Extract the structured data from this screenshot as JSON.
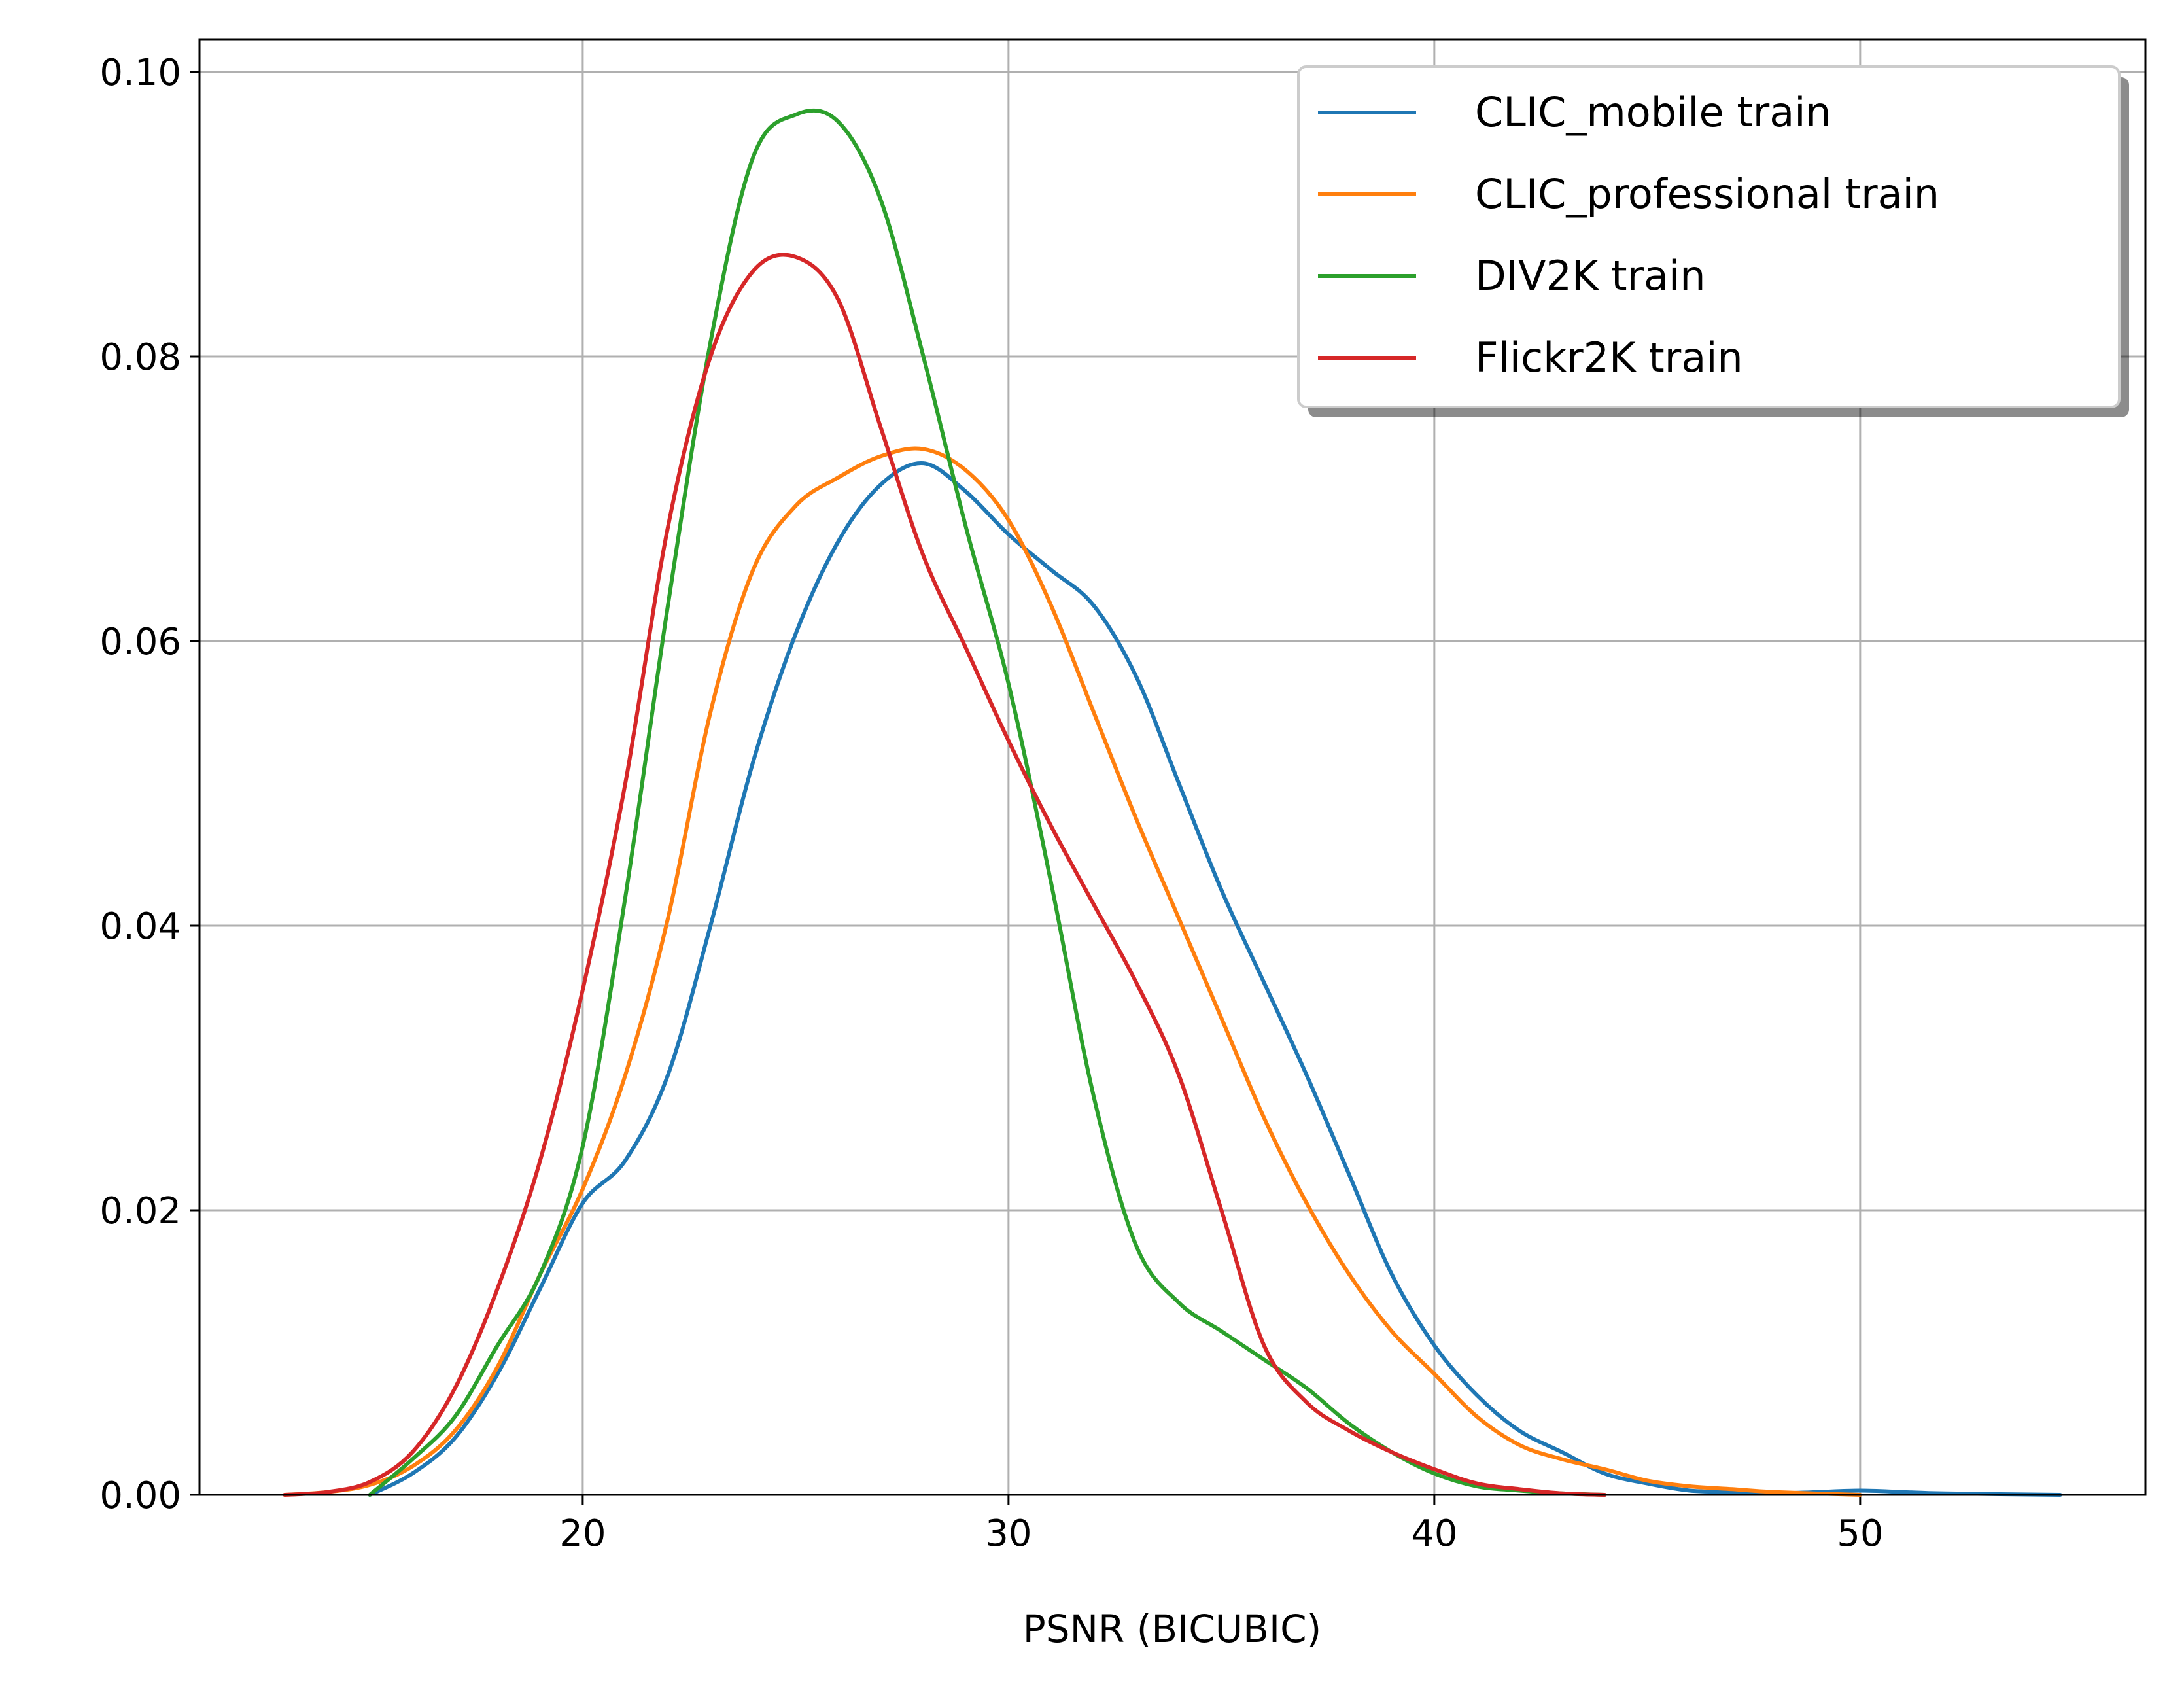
{
  "chart_data": {
    "type": "line",
    "title": "",
    "xlabel": "PSNR (BICUBIC)",
    "ylabel": "",
    "xlim": [
      11.0,
      56.7
    ],
    "ylim": [
      0.0,
      0.1023
    ],
    "xticks": [
      20,
      30,
      40,
      50
    ],
    "xtick_labels": [
      "20",
      "30",
      "40",
      "50"
    ],
    "yticks": [
      0.0,
      0.02,
      0.04,
      0.06,
      0.08,
      0.1
    ],
    "ytick_labels": [
      "0.00",
      "0.02",
      "0.04",
      "0.06",
      "0.08",
      "0.10"
    ],
    "grid": true,
    "legend": {
      "position": "top-right"
    },
    "series": [
      {
        "name": "CLIC_mobile train",
        "color": "#1f77b4",
        "points": [
          [
            15.0,
            0.0
          ],
          [
            16.0,
            0.0015
          ],
          [
            17.0,
            0.004
          ],
          [
            18.0,
            0.0085
          ],
          [
            19.0,
            0.0145
          ],
          [
            20.0,
            0.0205
          ],
          [
            21.0,
            0.0235
          ],
          [
            22.0,
            0.0295
          ],
          [
            23.0,
            0.04
          ],
          [
            24.0,
            0.0515
          ],
          [
            25.0,
            0.0605
          ],
          [
            26.0,
            0.067
          ],
          [
            27.0,
            0.071
          ],
          [
            28.0,
            0.0725
          ],
          [
            29.0,
            0.0705
          ],
          [
            30.0,
            0.0675
          ],
          [
            31.0,
            0.065
          ],
          [
            32.0,
            0.0625
          ],
          [
            33.0,
            0.0575
          ],
          [
            34.0,
            0.05
          ],
          [
            35.0,
            0.0425
          ],
          [
            36.0,
            0.036
          ],
          [
            37.0,
            0.0295
          ],
          [
            38.0,
            0.0225
          ],
          [
            39.0,
            0.0155
          ],
          [
            40.0,
            0.0105
          ],
          [
            41.0,
            0.007
          ],
          [
            42.0,
            0.0045
          ],
          [
            43.0,
            0.003
          ],
          [
            44.0,
            0.0015
          ],
          [
            45.0,
            0.0008
          ],
          [
            46.0,
            0.0003
          ],
          [
            47.0,
            0.0002
          ],
          [
            48.0,
            0.0001
          ],
          [
            49.0,
            0.0002
          ],
          [
            50.0,
            0.0003
          ],
          [
            51.0,
            0.0002
          ],
          [
            52.0,
            0.0001
          ],
          [
            54.7,
            0.0
          ]
        ]
      },
      {
        "name": "CLIC_professional train",
        "color": "#ff7f0e",
        "points": [
          [
            13.0,
            0.0
          ],
          [
            14.0,
            0.0002
          ],
          [
            15.0,
            0.0007
          ],
          [
            16.0,
            0.002
          ],
          [
            17.0,
            0.0045
          ],
          [
            18.0,
            0.009
          ],
          [
            19.0,
            0.0155
          ],
          [
            20.0,
            0.0215
          ],
          [
            21.0,
            0.0295
          ],
          [
            22.0,
            0.0405
          ],
          [
            23.0,
            0.055
          ],
          [
            24.0,
            0.065
          ],
          [
            25.0,
            0.0695
          ],
          [
            26.0,
            0.0715
          ],
          [
            27.0,
            0.073
          ],
          [
            28.0,
            0.0735
          ],
          [
            29.0,
            0.072
          ],
          [
            30.0,
            0.0685
          ],
          [
            31.0,
            0.0625
          ],
          [
            32.0,
            0.055
          ],
          [
            33.0,
            0.0475
          ],
          [
            34.0,
            0.0405
          ],
          [
            35.0,
            0.0335
          ],
          [
            36.0,
            0.0265
          ],
          [
            37.0,
            0.0205
          ],
          [
            38.0,
            0.0155
          ],
          [
            39.0,
            0.0115
          ],
          [
            40.0,
            0.0085
          ],
          [
            41.0,
            0.0055
          ],
          [
            42.0,
            0.0035
          ],
          [
            43.0,
            0.0025
          ],
          [
            44.0,
            0.0018
          ],
          [
            45.0,
            0.001
          ],
          [
            46.0,
            0.0006
          ],
          [
            47.0,
            0.0004
          ],
          [
            48.0,
            0.0002
          ],
          [
            50.0,
            0.0
          ]
        ]
      },
      {
        "name": "DIV2K train",
        "color": "#2ca02c",
        "points": [
          [
            15.0,
            0.0
          ],
          [
            16.0,
            0.0025
          ],
          [
            17.0,
            0.0055
          ],
          [
            18.0,
            0.0105
          ],
          [
            19.0,
            0.0155
          ],
          [
            20.0,
            0.0245
          ],
          [
            21.0,
            0.042
          ],
          [
            22.0,
            0.0625
          ],
          [
            23.0,
            0.081
          ],
          [
            24.0,
            0.094
          ],
          [
            25.0,
            0.097
          ],
          [
            26.0,
            0.0965
          ],
          [
            27.0,
            0.091
          ],
          [
            28.0,
            0.08
          ],
          [
            29.0,
            0.068
          ],
          [
            30.0,
            0.057
          ],
          [
            31.0,
            0.043
          ],
          [
            32.0,
            0.028
          ],
          [
            33.0,
            0.0175
          ],
          [
            34.0,
            0.0135
          ],
          [
            35.0,
            0.0115
          ],
          [
            36.0,
            0.0095
          ],
          [
            37.0,
            0.0075
          ],
          [
            38.0,
            0.005
          ],
          [
            39.0,
            0.003
          ],
          [
            40.0,
            0.0015
          ],
          [
            41.0,
            0.0006
          ],
          [
            42.0,
            0.0003
          ],
          [
            43.0,
            0.0001
          ],
          [
            44.0,
            0.0
          ]
        ]
      },
      {
        "name": "Flickr2K train",
        "color": "#d62728",
        "points": [
          [
            13.0,
            0.0
          ],
          [
            14.0,
            0.0002
          ],
          [
            15.0,
            0.0009
          ],
          [
            16.0,
            0.003
          ],
          [
            17.0,
            0.0075
          ],
          [
            18.0,
            0.0145
          ],
          [
            19.0,
            0.0235
          ],
          [
            20.0,
            0.0355
          ],
          [
            21.0,
            0.05
          ],
          [
            22.0,
            0.068
          ],
          [
            23.0,
            0.08
          ],
          [
            24.0,
            0.086
          ],
          [
            25.0,
            0.087
          ],
          [
            26.0,
            0.084
          ],
          [
            27.0,
            0.075
          ],
          [
            28.0,
            0.066
          ],
          [
            29.0,
            0.0595
          ],
          [
            30.0,
            0.053
          ],
          [
            31.0,
            0.047
          ],
          [
            32.0,
            0.0415
          ],
          [
            33.0,
            0.036
          ],
          [
            34.0,
            0.0295
          ],
          [
            35.0,
            0.02
          ],
          [
            36.0,
            0.0105
          ],
          [
            37.0,
            0.0065
          ],
          [
            38.0,
            0.0045
          ],
          [
            39.0,
            0.003
          ],
          [
            40.0,
            0.0018
          ],
          [
            41.0,
            0.0008
          ],
          [
            42.0,
            0.0004
          ],
          [
            43.0,
            0.0001
          ],
          [
            44.0,
            0.0
          ]
        ]
      }
    ]
  }
}
